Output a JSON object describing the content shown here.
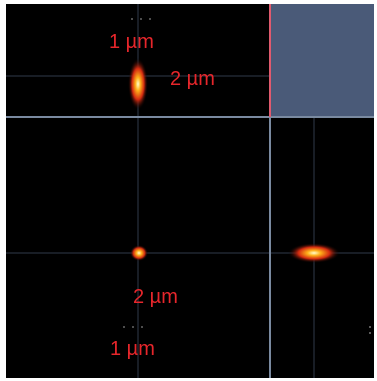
{
  "scale_labels": {
    "xz_lateral": "1 µm",
    "xz_axial": "2 µm",
    "xy_axial": "2 µm",
    "xy_lateral": "1 µm"
  },
  "colors": {
    "background": "#000000",
    "label_red": "#e6262b",
    "corner_fill": "#4a5a78",
    "separator": "#7a8aa0",
    "separator_accent": "#e05a6e",
    "crosshair": "#2f3a4a"
  }
}
